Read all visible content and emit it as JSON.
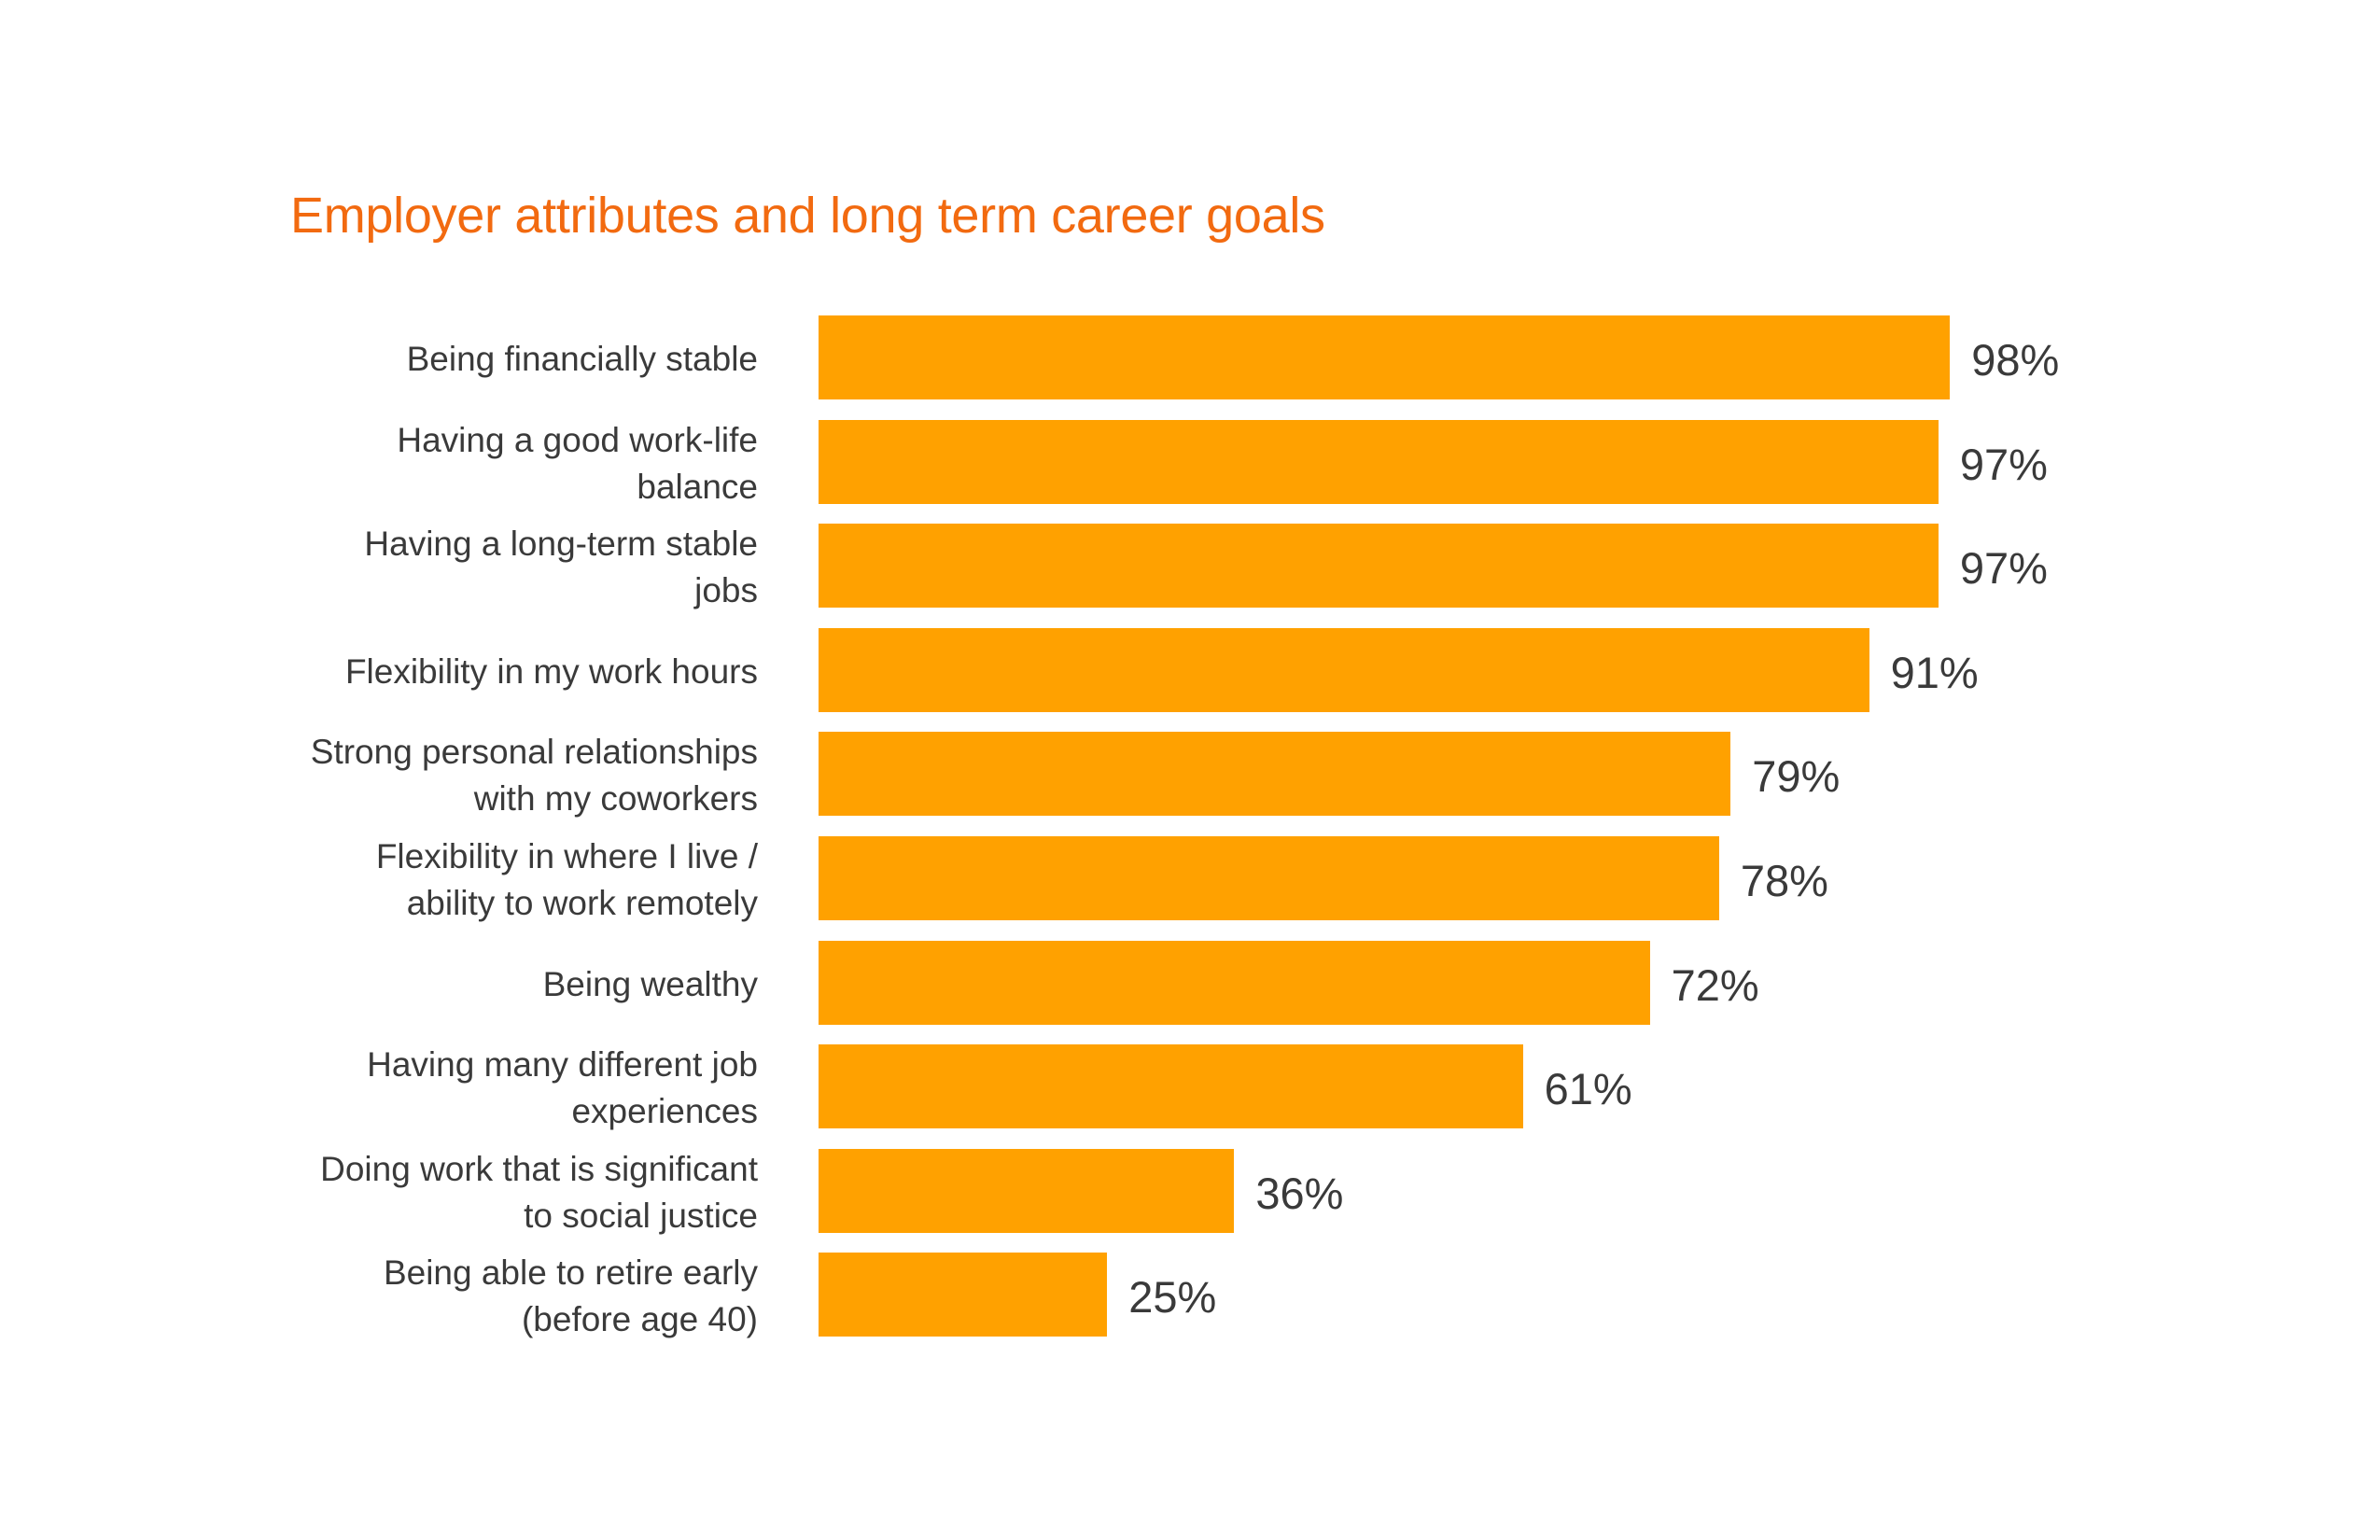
{
  "colors": {
    "title": "#F26A10",
    "bar": "#FFA100",
    "text": "#3A3A3A",
    "background": "#FFFFFF"
  },
  "chart_data": {
    "type": "bar",
    "orientation": "horizontal",
    "title": "Employer attributes and long term career goals",
    "xlabel": "",
    "ylabel": "",
    "xlim": [
      0,
      100
    ],
    "grid": false,
    "legend": null,
    "value_suffix": "%",
    "categories": [
      "Being financially stable",
      "Having a good work-life\nbalance",
      "Having a long-term stable\njobs",
      "Flexibility in my work hours",
      "Strong personal relationships\nwith my coworkers",
      "Flexibility in where I live /\nability to work remotely",
      "Being wealthy",
      "Having many different job\nexperiences",
      "Doing work that is significant\nto social justice",
      "Being able to retire early\n(before age 40)"
    ],
    "values": [
      98,
      97,
      97,
      91,
      79,
      78,
      72,
      61,
      36,
      25
    ],
    "data_labels": [
      "98%",
      "97%",
      "97%",
      "91%",
      "79%",
      "78%",
      "72%",
      "61%",
      "36%",
      "25%"
    ]
  }
}
